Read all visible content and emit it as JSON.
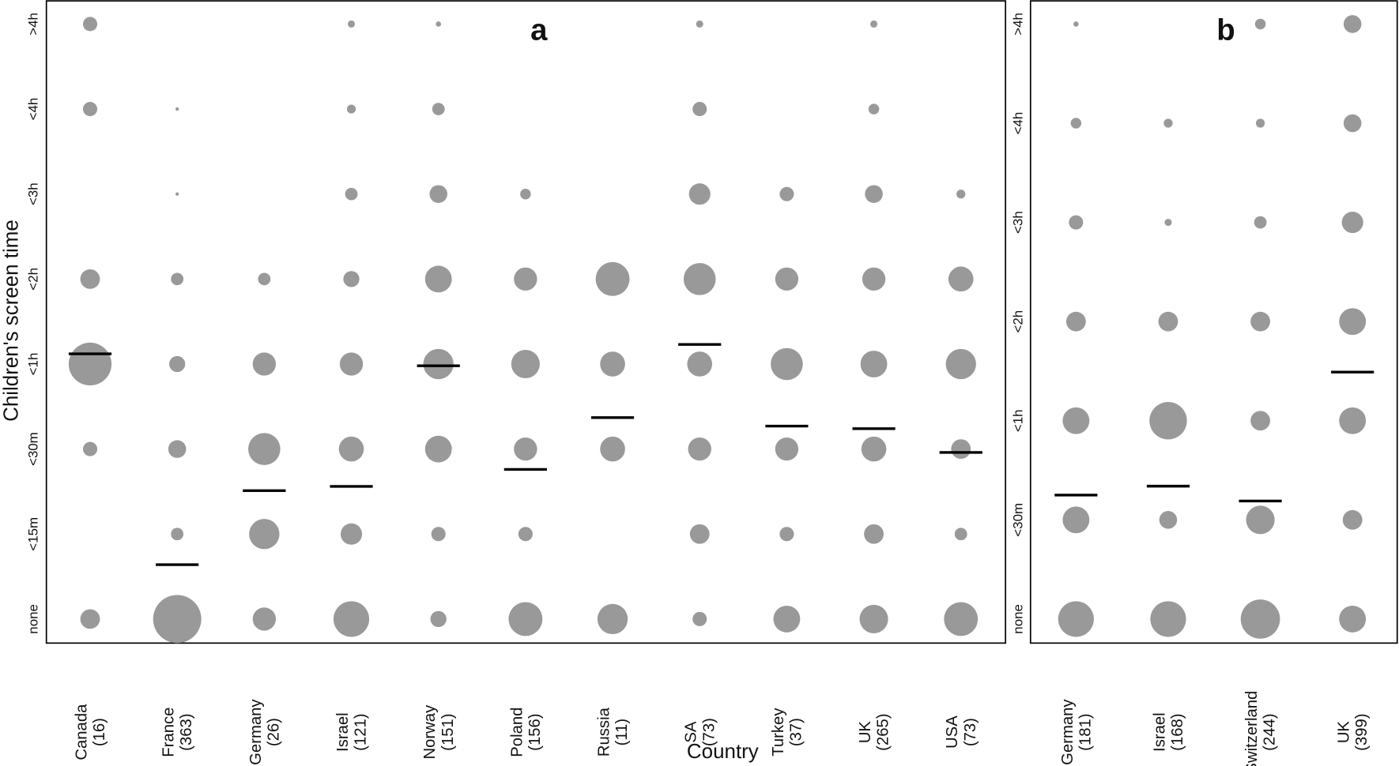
{
  "chart_data": [
    {
      "type": "scatter",
      "panel_label": "a",
      "xlabel": "Country",
      "ylabel": "Children's screen time",
      "y_categories": [
        "none",
        "<15m",
        "<30m",
        "<1h",
        "<2h",
        "<3h",
        "<4h",
        ">4h"
      ],
      "categories": [
        {
          "name": "Canada",
          "n": "(16)"
        },
        {
          "name": "France",
          "n": "(363)"
        },
        {
          "name": "Germany",
          "n": "(26)"
        },
        {
          "name": "Israel",
          "n": "(121)"
        },
        {
          "name": "Norway",
          "n": "(151)"
        },
        {
          "name": "Poland",
          "n": "(156)"
        },
        {
          "name": "Russia",
          "n": "(11)"
        },
        {
          "name": "SA",
          "n": "(73)"
        },
        {
          "name": "Turkey",
          "n": "(37)"
        },
        {
          "name": "UK",
          "n": "(265)"
        },
        {
          "name": "USA",
          "n": "(73)"
        }
      ],
      "bubble_relative_size_note_order": "none,<15m,<30m,<1h,<2h,<3h,<4h,>4h",
      "bubble_sizes": [
        [
          0.166,
          0,
          0.088,
          0.79,
          0.166,
          0,
          0.088,
          0.088
        ],
        [
          1,
          0.067,
          0.137,
          0.111,
          0.067,
          0.005,
          0.005,
          0
        ],
        [
          0.232,
          0.396,
          0.444,
          0.232,
          0.067,
          0,
          0,
          0
        ],
        [
          0.549,
          0.198,
          0.269,
          0.232,
          0.111,
          0.067,
          0.034,
          0.022
        ],
        [
          0.111,
          0.088,
          0.309,
          0.396,
          0.309,
          0.137,
          0.067,
          0.012
        ],
        [
          0.495,
          0.088,
          0.232,
          0.351,
          0.232,
          0.049,
          0,
          0
        ],
        [
          0.396,
          0,
          0.269,
          0.269,
          0.495,
          0,
          0,
          0
        ],
        [
          0.088,
          0.166,
          0.232,
          0.269,
          0.444,
          0.198,
          0.088,
          0.022
        ],
        [
          0.309,
          0.088,
          0.232,
          0.444,
          0.232,
          0.088,
          0,
          0
        ],
        [
          0.351,
          0.166,
          0.269,
          0.309,
          0.232,
          0.137,
          0.049,
          0.022
        ],
        [
          0.495,
          0.067,
          0.166,
          0.396,
          0.269,
          0.034,
          0,
          0
        ]
      ],
      "medians": [
        3.12,
        0.64,
        1.51,
        1.56,
        2.98,
        1.76,
        2.37,
        3.23,
        2.27,
        2.24,
        1.96
      ],
      "bubble_color": "#999999",
      "median_color": "#000000"
    },
    {
      "type": "scatter",
      "panel_label": "b",
      "y_categories": [
        "none",
        "<30m",
        "<1h",
        "<2h",
        "<3h",
        "<4h",
        ">4h"
      ],
      "categories": [
        {
          "name": "Germany",
          "n": "(181)"
        },
        {
          "name": "Israel",
          "n": "(168)"
        },
        {
          "name": "Switzerland",
          "n": "(244)"
        },
        {
          "name": "UK",
          "n": "(399)"
        }
      ],
      "bubble_sizes": [
        [
          0.549,
          0.309,
          0.309,
          0.166,
          0.088,
          0.049,
          0.012
        ],
        [
          0.549,
          0.137,
          0.605,
          0.166,
          0.022,
          0.034,
          0
        ],
        [
          0.664,
          0.351,
          0.166,
          0.166,
          0.067,
          0.034,
          0.049
        ],
        [
          0.309,
          0.166,
          0.309,
          0.309,
          0.198,
          0.137,
          0.137
        ]
      ],
      "medians": [
        1.25,
        1.34,
        1.19,
        2.49
      ],
      "bubble_color": "#999999",
      "median_color": "#000000"
    }
  ]
}
